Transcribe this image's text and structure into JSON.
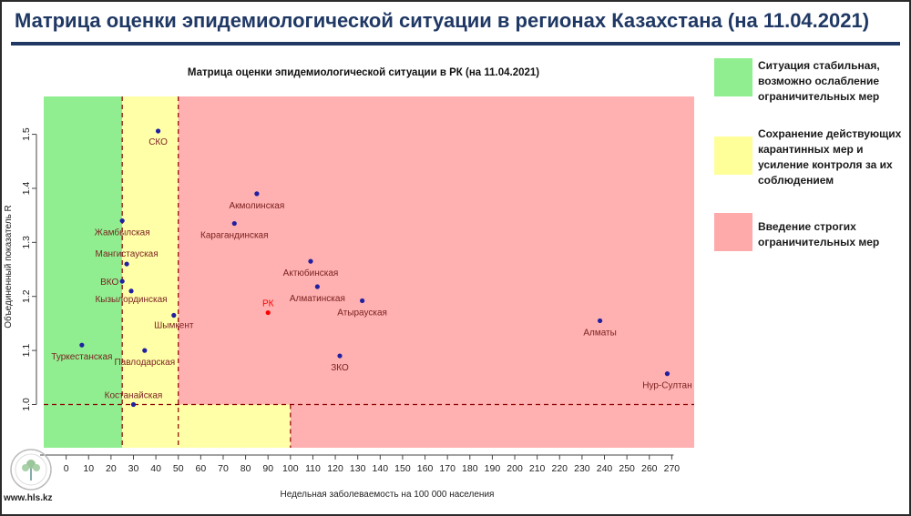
{
  "slide": {
    "title": "Матрица оценки эпидемиологической ситуации в регионах Казахстана (на 11.04.2021)",
    "website": "www.hls.kz"
  },
  "legend": [
    {
      "color": "#90ee90",
      "text": "Ситуация стабильная, возможно ослабление ограничительных мер"
    },
    {
      "color": "#ffff99",
      "text": "Сохранение действующих карантинных мер и усиление контроля за их соблюдением"
    },
    {
      "color": "#ffaaaa",
      "text": "Введение строгих ограничительных мер"
    }
  ],
  "colors": {
    "green_zone": "#90ee90",
    "yellow_zone": "#ffffa8",
    "red_zone": "#ffb0b0",
    "point": "#2020a0",
    "point_highlight": "#ff0000",
    "threshold_line": "#8b0000",
    "title": "#1f3864"
  },
  "chart_data": {
    "type": "scatter",
    "title": "Матрица оценки эпидемиологической ситуации в РК (на 11.04.2021)",
    "xlabel": "Недельная заболеваемость на 100 000 населения",
    "ylabel": "Объединенный показатель R",
    "xlim": [
      -10,
      280
    ],
    "ylim": [
      0.92,
      1.57
    ],
    "xticks": [
      0,
      10,
      20,
      30,
      40,
      50,
      60,
      70,
      80,
      90,
      100,
      110,
      120,
      130,
      140,
      150,
      160,
      170,
      180,
      190,
      200,
      210,
      220,
      230,
      240,
      250,
      260,
      270
    ],
    "yticks": [
      1.0,
      1.1,
      1.2,
      1.3,
      1.4,
      1.5
    ],
    "zones": {
      "green_until_x": 25,
      "yellow_until_x": 50,
      "r_threshold": 1.0,
      "lower_yellow_until_x": 100
    },
    "points": [
      {
        "name": "СКО",
        "x": 41,
        "y": 1.506,
        "highlight": false
      },
      {
        "name": "Акмолинская",
        "x": 85,
        "y": 1.39,
        "highlight": false
      },
      {
        "name": "Жамбылская",
        "x": 25,
        "y": 1.34,
        "highlight": false
      },
      {
        "name": "Карагандинская",
        "x": 75,
        "y": 1.335,
        "highlight": false
      },
      {
        "name": "Мангистауская",
        "x": 27,
        "y": 1.26,
        "highlight": false
      },
      {
        "name": "Актюбинская",
        "x": 109,
        "y": 1.265,
        "highlight": false
      },
      {
        "name": "ВКО",
        "x": 25,
        "y": 1.228,
        "highlight": false
      },
      {
        "name": "Алматинская",
        "x": 112,
        "y": 1.218,
        "highlight": false
      },
      {
        "name": "Кызылординская",
        "x": 29,
        "y": 1.21,
        "highlight": false
      },
      {
        "name": "Атырауская",
        "x": 132,
        "y": 1.192,
        "highlight": false
      },
      {
        "name": "РК",
        "x": 90,
        "y": 1.17,
        "highlight": true
      },
      {
        "name": "Шымкент",
        "x": 48,
        "y": 1.165,
        "highlight": false
      },
      {
        "name": "Алматы",
        "x": 238,
        "y": 1.155,
        "highlight": false
      },
      {
        "name": "Туркестанская",
        "x": 7,
        "y": 1.11,
        "highlight": false
      },
      {
        "name": "Павлодарская",
        "x": 35,
        "y": 1.1,
        "highlight": false
      },
      {
        "name": "ЗКО",
        "x": 122,
        "y": 1.09,
        "highlight": false
      },
      {
        "name": "Нур-Султан",
        "x": 268,
        "y": 1.057,
        "highlight": false
      },
      {
        "name": "Костанайская",
        "x": 30,
        "y": 1.0,
        "highlight": false
      }
    ]
  }
}
